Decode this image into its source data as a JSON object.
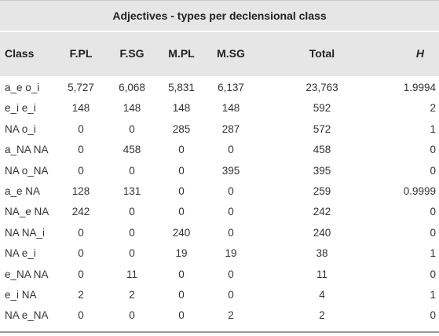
{
  "table": {
    "title": "Adjectives - types per declensional class",
    "headers": {
      "class": "Class",
      "fpl": "F.PL",
      "fsg": "F.SG",
      "mpl": "M.PL",
      "msg": "M.SG",
      "total": "Total",
      "h": "H"
    },
    "rows": [
      {
        "class": "a_e o_i",
        "fpl": "5,727",
        "fsg": "6,068",
        "mpl": "5,831",
        "msg": "6,137",
        "total": "23,763",
        "h": "1.9994"
      },
      {
        "class": "e_i e_i",
        "fpl": "148",
        "fsg": "148",
        "mpl": "148",
        "msg": "148",
        "total": "592",
        "h": "2"
      },
      {
        "class": "NA o_i",
        "fpl": "0",
        "fsg": "0",
        "mpl": "285",
        "msg": "287",
        "total": "572",
        "h": "1"
      },
      {
        "class": "a_NA NA",
        "fpl": "0",
        "fsg": "458",
        "mpl": "0",
        "msg": "0",
        "total": "458",
        "h": "0"
      },
      {
        "class": "NA o_NA",
        "fpl": "0",
        "fsg": "0",
        "mpl": "0",
        "msg": "395",
        "total": "395",
        "h": "0"
      },
      {
        "class": "a_e NA",
        "fpl": "128",
        "fsg": "131",
        "mpl": "0",
        "msg": "0",
        "total": "259",
        "h": "0.9999"
      },
      {
        "class": "NA_e NA",
        "fpl": "242",
        "fsg": "0",
        "mpl": "0",
        "msg": "0",
        "total": "242",
        "h": "0"
      },
      {
        "class": "NA NA_i",
        "fpl": "0",
        "fsg": "0",
        "mpl": "240",
        "msg": "0",
        "total": "240",
        "h": "0"
      },
      {
        "class": "NA e_i",
        "fpl": "0",
        "fsg": "0",
        "mpl": "19",
        "msg": "19",
        "total": "38",
        "h": "1"
      },
      {
        "class": "e_NA NA",
        "fpl": "0",
        "fsg": "11",
        "mpl": "0",
        "msg": "0",
        "total": "11",
        "h": "0"
      },
      {
        "class": "e_i NA",
        "fpl": "2",
        "fsg": "2",
        "mpl": "0",
        "msg": "0",
        "total": "4",
        "h": "1"
      },
      {
        "class": "NA e_NA",
        "fpl": "0",
        "fsg": "0",
        "mpl": "0",
        "msg": "2",
        "total": "2",
        "h": "0"
      }
    ]
  }
}
